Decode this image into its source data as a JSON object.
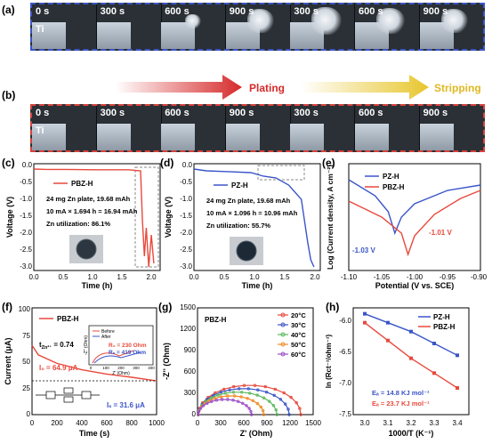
{
  "panel_a": {
    "label": "(a)",
    "times": [
      "0 s",
      "300 s",
      "600 s",
      "900 s",
      "300 s",
      "600 s",
      "900 s"
    ],
    "ti": "Ti"
  },
  "panel_b": {
    "label": "(b)",
    "times": [
      "0 s",
      "300 s",
      "600 s",
      "900 s",
      "300 s",
      "600 s",
      "900 s"
    ],
    "ti": "Ti"
  },
  "arrows": {
    "plating": "Plating",
    "stripping": "Stripping",
    "plating_color": "#d62a2a",
    "stripping_color": "#e8c62e"
  },
  "panel_c": {
    "label": "(c)",
    "legend": "PBZ-H",
    "note1": "24 mg Zn plate, 19.68 mAh",
    "note2": "10 mA × 1.694 h = 16.94 mAh",
    "note3": "Zn utilization: 86.1%",
    "xlabel": "Time (h)",
    "ylabel": "Voltage (V)",
    "xticks": [
      "0.0",
      "0.5",
      "1.0",
      "1.5",
      "2.0"
    ],
    "yticks": [
      "0.0",
      "-0.5",
      "-1.0",
      "-1.5",
      "-2.0",
      "-2.5",
      "-3.0"
    ]
  },
  "panel_d": {
    "label": "(d)",
    "legend": "PZ-H",
    "note1": "24 mg Zn plate, 19.68 mAh",
    "note2": "10 mA × 1.096 h = 10.96 mAh",
    "note3": "Zn utilization: 55.7%",
    "xlabel": "Time (h)",
    "ylabel": "Voltage (V)",
    "xticks": [
      "0.0",
      "0.5",
      "1.0",
      "1.5",
      "2.0"
    ],
    "yticks": [
      "0.0",
      "-0.5",
      "-1.0",
      "-1.5",
      "-2.0",
      "-2.5",
      "-3.0"
    ]
  },
  "panel_e": {
    "label": "(e)",
    "legend": [
      "PZ-H",
      "PBZ-H"
    ],
    "ann1": "-1.03 V",
    "ann2": "-1.01 V",
    "xlabel": "Potential (V vs. SCE)",
    "ylabel": "Log (Current density, A cm⁻²)",
    "xticks": [
      "-1.10",
      "-1.05",
      "-1.00",
      "-0.95",
      "-0.90"
    ]
  },
  "panel_f": {
    "label": "(f)",
    "legend": "PBZ-H",
    "t": "t",
    "tsub": "Zn²⁺",
    "tval": " = 0.74",
    "i0": "I₀ = 64.9 μA",
    "is": "Iₛ = 31.6 μA",
    "inset_legend": [
      "Before",
      "After"
    ],
    "r0": "R₀ = 230 Ohm",
    "rs": "Rₛ = 419 Ohm",
    "inset_xlabel": "Z' (Ohm)",
    "inset_ylabel": "-Z'' (Ohm)",
    "inset_xticks": [
      "0",
      "100",
      "200",
      "300",
      "400"
    ],
    "xlabel": "Time (s)",
    "ylabel": "Current (μA)",
    "xticks": [
      "0",
      "200",
      "400",
      "600",
      "800",
      "1000"
    ],
    "yticks": [
      "0",
      "25",
      "50",
      "75",
      "100"
    ]
  },
  "panel_g": {
    "label": "(g)",
    "title": "PBZ-H",
    "legend": [
      "20°C",
      "30°C",
      "40°C",
      "50°C",
      "60°C"
    ],
    "xlabel": "Z' (Ohm)",
    "ylabel": "-Z'' (Ohm)",
    "xticks": [
      "0",
      "300",
      "600",
      "900",
      "1200",
      "1500"
    ],
    "yticks": [
      "0",
      "300",
      "600",
      "900",
      "1200",
      "1500"
    ]
  },
  "panel_h": {
    "label": "(h)",
    "legend": [
      "PZ-H",
      "PBZ-H"
    ],
    "ea1": "Eₐ = 14.8 KJ mol⁻¹",
    "ea2": "Eₐ = 23.7 KJ mol⁻¹",
    "xlabel": "1000/T (K⁻¹)",
    "ylabel": "ln (Rct⁻¹/ohm⁻¹)",
    "xticks": [
      "3.0",
      "3.1",
      "3.2",
      "3.3",
      "3.4"
    ],
    "yticks": [
      "-6.0",
      "-6.5",
      "-7.0",
      "-7.5"
    ]
  },
  "colors": {
    "blue": "#3b55c8",
    "red": "#e8493c",
    "orange": "#f08c2a",
    "green": "#5cb85c",
    "purple": "#9c4fc8",
    "yellow": "#e8c62e"
  },
  "chart_data": [
    {
      "type": "line",
      "xlabel": "Time (h)",
      "ylabel": "Voltage (V)",
      "xlim": [
        0,
        2.0
      ],
      "ylim": [
        -3.0,
        0.0
      ],
      "series": [
        {
          "name": "PBZ-H",
          "x": [
            0,
            0.2,
            0.5,
            1.0,
            1.5,
            1.69,
            1.72,
            1.75,
            1.78,
            1.82,
            1.86,
            1.9
          ],
          "y": [
            -0.15,
            -0.16,
            -0.16,
            -0.17,
            -0.17,
            -0.2,
            -1.6,
            -2.6,
            -1.8,
            -2.9,
            -2.0,
            -2.8
          ]
        }
      ]
    },
    {
      "type": "line",
      "xlabel": "Time (h)",
      "ylabel": "Voltage (V)",
      "xlim": [
        0,
        2.0
      ],
      "ylim": [
        -3.0,
        0.0
      ],
      "series": [
        {
          "name": "PZ-H",
          "x": [
            0,
            0.2,
            0.5,
            0.9,
            1.1,
            1.3,
            1.5,
            1.7,
            1.8,
            1.85,
            1.9
          ],
          "y": [
            -0.15,
            -0.2,
            -0.22,
            -0.25,
            -0.35,
            -0.4,
            -0.6,
            -1.0,
            -2.2,
            -2.7,
            -2.9
          ]
        }
      ]
    },
    {
      "type": "line",
      "xlabel": "Potential (V vs. SCE)",
      "ylabel": "Log (Current density, A cm⁻²)",
      "xlim": [
        -1.1,
        -0.9
      ],
      "series": [
        {
          "name": "PZ-H",
          "x": [
            -1.1,
            -1.06,
            -1.04,
            -1.03,
            -1.02,
            -1.0,
            -0.95,
            -0.9
          ],
          "y": [
            -2.6,
            -3.2,
            -3.8,
            -4.6,
            -4.0,
            -3.5,
            -3.0,
            -2.8
          ]
        },
        {
          "name": "PBZ-H",
          "x": [
            -1.1,
            -1.05,
            -1.02,
            -1.01,
            -1.0,
            -0.97,
            -0.93,
            -0.9
          ],
          "y": [
            -3.4,
            -4.0,
            -4.6,
            -5.4,
            -4.7,
            -3.9,
            -3.3,
            -3.0
          ]
        }
      ]
    },
    {
      "type": "line",
      "xlabel": "Time (s)",
      "ylabel": "Current (μA)",
      "xlim": [
        0,
        1000
      ],
      "ylim": [
        0,
        100
      ],
      "series": [
        {
          "name": "PBZ-H",
          "x": [
            0,
            50,
            200,
            400,
            600,
            800,
            1000
          ],
          "y": [
            64.9,
            56,
            48,
            42,
            38,
            35,
            31.6
          ]
        }
      ]
    },
    {
      "type": "line",
      "xlabel": "Z' (Ohm)",
      "ylabel": "-Z'' (Ohm)",
      "xlim": [
        0,
        1500
      ],
      "ylim": [
        0,
        1500
      ],
      "series": [
        {
          "name": "20°C",
          "diameter": 1330
        },
        {
          "name": "30°C",
          "diameter": 1180
        },
        {
          "name": "40°C",
          "diameter": 1020
        },
        {
          "name": "50°C",
          "diameter": 850
        },
        {
          "name": "60°C",
          "diameter": 690
        }
      ]
    },
    {
      "type": "scatter",
      "xlabel": "1000/T (K⁻¹)",
      "ylabel": "ln (Rct⁻¹/ohm⁻¹)",
      "xlim": [
        2.95,
        3.45
      ],
      "ylim": [
        -7.5,
        -5.8
      ],
      "series": [
        {
          "name": "PZ-H",
          "x": [
            3.0,
            3.1,
            3.2,
            3.3,
            3.4
          ],
          "y": [
            -5.95,
            -6.1,
            -6.25,
            -6.45,
            -6.65
          ]
        },
        {
          "name": "PBZ-H",
          "x": [
            3.0,
            3.1,
            3.2,
            3.3,
            3.4
          ],
          "y": [
            -6.1,
            -6.4,
            -6.7,
            -6.95,
            -7.2
          ]
        }
      ]
    }
  ]
}
